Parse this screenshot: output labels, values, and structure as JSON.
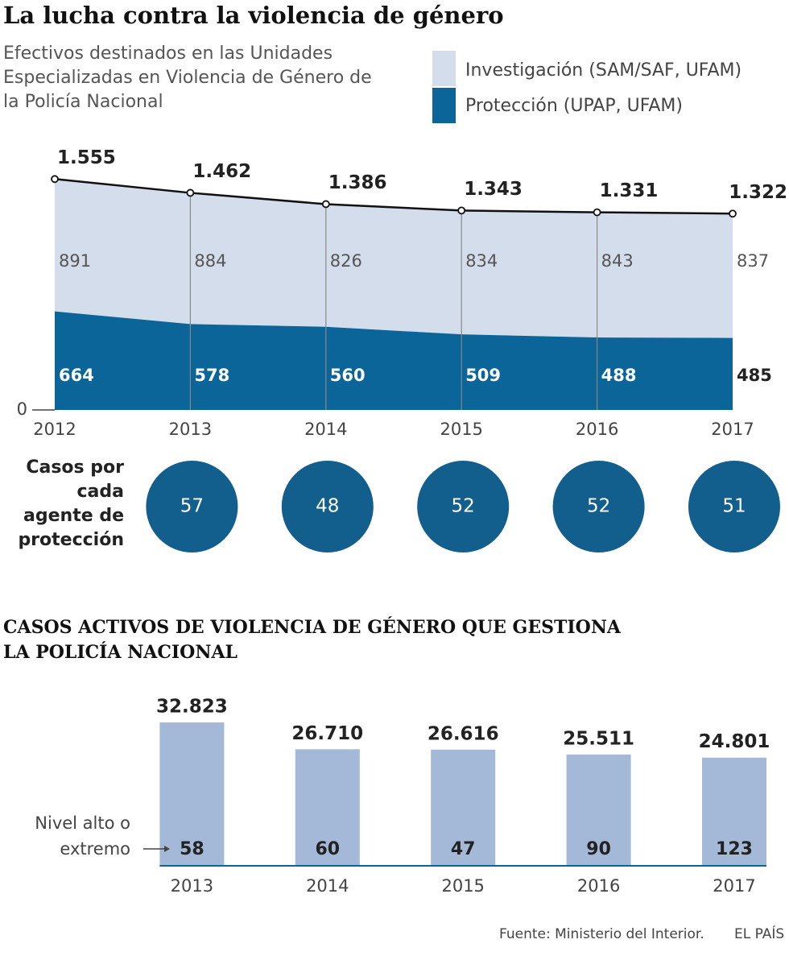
{
  "title": "La lucha contra la violencia de género",
  "source": "Fuente: Ministerio del Interior.",
  "brand": "EL PAÍS",
  "chart_data": [
    {
      "type": "area",
      "subtitle": "Efectivos destinados en las Unidades Especializadas en Violencia de Género de la Policía Nacional",
      "categories": [
        "2012",
        "2013",
        "2014",
        "2015",
        "2016",
        "2017"
      ],
      "series": [
        {
          "name": "Investigación (SAM/SAF, UFAM)",
          "color": "#d3ddec",
          "values": [
            891,
            884,
            826,
            834,
            843,
            837
          ]
        },
        {
          "name": "Protección (UPAP, UFAM)",
          "color": "#0b6598",
          "values": [
            664,
            578,
            560,
            509,
            488,
            485
          ]
        }
      ],
      "totals": {
        "values": [
          1555,
          1462,
          1386,
          1343,
          1331,
          1322
        ],
        "value_labels": [
          "1.555",
          "1.462",
          "1.386",
          "1.343",
          "1.331",
          "1.322"
        ]
      },
      "ylim": [
        0,
        1600
      ],
      "yticks": [
        0
      ]
    },
    {
      "type": "circles",
      "label": "Casos por cada agente de protección",
      "values": [
        57,
        48,
        52,
        52,
        51
      ],
      "color": "#125f8e"
    },
    {
      "type": "bar",
      "title": "CASOS ACTIVOS DE VIOLENCIA DE GÉNERO QUE GESTIONA LA POLICÍA NACIONAL",
      "categories": [
        "2013",
        "2014",
        "2015",
        "2016",
        "2017"
      ],
      "values": [
        32823,
        26710,
        26616,
        25511,
        24801
      ],
      "value_labels": [
        "32.823",
        "26.710",
        "26.616",
        "25.511",
        "24.801"
      ],
      "color": "#a3b9d7",
      "detail": {
        "name": "Nivel alto o extremo",
        "values": [
          58,
          60,
          47,
          90,
          123
        ],
        "color": "#0b6598"
      },
      "ylim": [
        0,
        33000
      ]
    }
  ]
}
